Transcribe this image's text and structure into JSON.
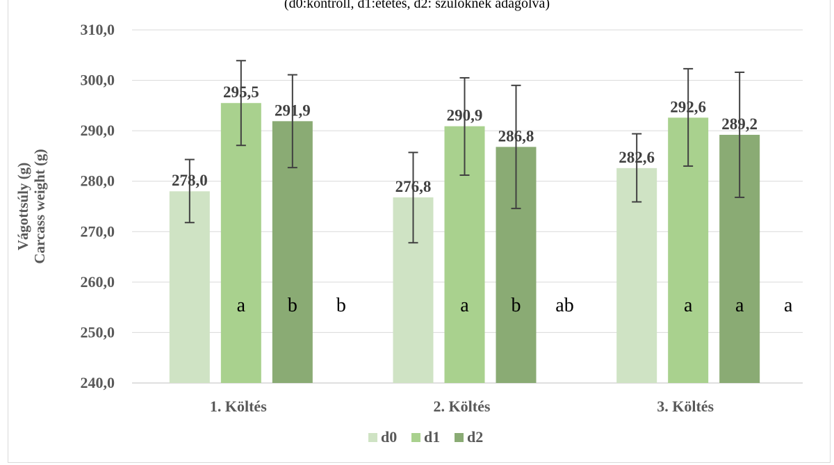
{
  "chart_data": {
    "type": "bar",
    "subtitle": "(d0:kontroll, d1:etetés, d2: szülőknek adagolva)",
    "ylabel": "Vágottsúly (g)",
    "ylabel2": "Carcass weight (g)",
    "xlabel": "",
    "ylim": [
      240,
      310
    ],
    "ytick_step": 10,
    "yticks": [
      "240,0",
      "250,0",
      "260,0",
      "270,0",
      "280,0",
      "290,0",
      "300,0",
      "310,0"
    ],
    "categories": [
      "1. Költés",
      "2. Költés",
      "3. Költés"
    ],
    "grid": true,
    "legend_position": "bottom",
    "series": [
      {
        "name": "d0",
        "color": "#cfe3c4",
        "values": [
          278.0,
          276.8,
          282.6
        ],
        "labels": [
          "278,0",
          "276,8",
          "282,6"
        ],
        "err_low": [
          271.8,
          267.8,
          275.9
        ],
        "err_high": [
          284.3,
          285.7,
          289.4
        ],
        "letters": [
          "",
          "",
          ""
        ]
      },
      {
        "name": "d1",
        "color": "#a9d18e",
        "values": [
          295.5,
          290.9,
          292.6
        ],
        "labels": [
          "295,5",
          "290,9",
          "292,6"
        ],
        "err_low": [
          287.1,
          281.2,
          283.0
        ],
        "err_high": [
          303.9,
          300.5,
          302.3
        ],
        "letters": [
          "a",
          "a",
          "a"
        ]
      },
      {
        "name": "d2",
        "color": "#8aab74",
        "values": [
          291.9,
          286.8,
          289.2
        ],
        "labels": [
          "291,9",
          "286,8",
          "289,2"
        ],
        "err_low": [
          282.7,
          274.6,
          276.8
        ],
        "err_high": [
          301.1,
          299.0,
          301.6
        ],
        "letters": [
          "b",
          "b",
          "a"
        ]
      }
    ],
    "extra_letters": [
      "b",
      "ab",
      "a"
    ]
  }
}
